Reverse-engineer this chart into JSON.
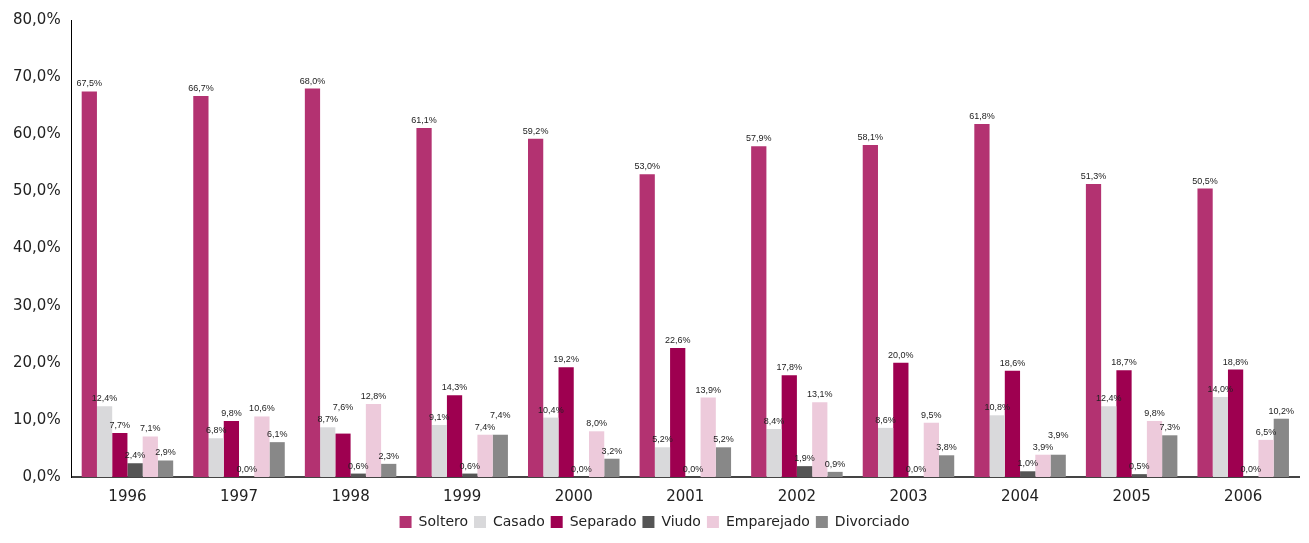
{
  "chart_data": {
    "type": "bar",
    "categories": [
      "1996",
      "1997",
      "1998",
      "1999",
      "2000",
      "2001",
      "2002",
      "2003",
      "2004",
      "2005",
      "2006"
    ],
    "series": [
      {
        "name": "Soltero",
        "color": "#b33271",
        "values": [
          67.5,
          66.7,
          68.0,
          61.1,
          59.2,
          53.0,
          57.9,
          58.1,
          61.8,
          51.3,
          50.5
        ],
        "value_labels": [
          "67,5%",
          "66,7%",
          "68,0%",
          "61,1%",
          "59,2%",
          "53,0%",
          "57,9%",
          "58,1%",
          "61,8%",
          "51,3%",
          "50,5%"
        ]
      },
      {
        "name": "Casado",
        "color": "#d9d9db",
        "values": [
          12.4,
          6.8,
          8.7,
          9.1,
          10.4,
          5.2,
          8.4,
          8.6,
          10.8,
          12.4,
          14.0
        ],
        "value_labels": [
          "12,4%",
          "6,8%",
          "8,7%",
          "9,1%",
          "10,4%",
          "5,2%",
          "8,4%",
          "8,6%",
          "10,8%",
          "12,4%",
          "14,0%"
        ]
      },
      {
        "name": "Separado",
        "color": "#9e0050",
        "values": [
          7.7,
          9.8,
          7.6,
          14.3,
          19.2,
          22.6,
          17.8,
          20.0,
          18.6,
          18.7,
          18.8
        ],
        "value_labels": [
          "7,7%",
          "9,8%",
          "7,6%",
          "14,3%",
          "19,2%",
          "22,6%",
          "17,8%",
          "20,0%",
          "18,6%",
          "18,7%",
          "18,8%"
        ]
      },
      {
        "name": "Viudo",
        "color": "#555555",
        "values": [
          2.4,
          0.0,
          0.6,
          0.6,
          0.0,
          0.0,
          1.9,
          0.0,
          1.0,
          0.5,
          0.0
        ],
        "value_labels": [
          "2,4%",
          "0,0%",
          "0,6%",
          "0,6%",
          "0,0%",
          "0,0%",
          "1,9%",
          "0,0%",
          "1,0%",
          "0,5%",
          "0,0%"
        ]
      },
      {
        "name": "Emparejado",
        "color": "#edcadb",
        "values": [
          7.1,
          10.6,
          12.8,
          7.4,
          8.0,
          13.9,
          13.1,
          9.5,
          3.9,
          9.8,
          6.5
        ],
        "value_labels": [
          "7,1%",
          "10,6%",
          "12,8%",
          "7,4%",
          "8,0%",
          "13,9%",
          "13,1%",
          "9,5%",
          "3,9%",
          "9,8%",
          "6,5%"
        ]
      },
      {
        "name": "Divorciado",
        "color": "#888888",
        "values": [
          2.9,
          6.1,
          2.3,
          7.4,
          3.2,
          5.2,
          0.9,
          3.8,
          3.9,
          7.3,
          10.2
        ],
        "value_labels": [
          "2,9%",
          "6,1%",
          "2,3%",
          "7,4%",
          "3,2%",
          "5,2%",
          "0,9%",
          "3,8%",
          "3,9%",
          "7,3%",
          "10,2%"
        ]
      }
    ],
    "ylim": [
      0,
      80
    ],
    "yticks": [
      {
        "value": 0,
        "label": "0,0%"
      },
      {
        "value": 10,
        "label": "10,0%"
      },
      {
        "value": 20,
        "label": "20,0%"
      },
      {
        "value": 30,
        "label": "30,0%"
      },
      {
        "value": 40,
        "label": "40,0%"
      },
      {
        "value": 50,
        "label": "50,0%"
      },
      {
        "value": 60,
        "label": "60,0%"
      },
      {
        "value": 70,
        "label": "70,0%"
      },
      {
        "value": 80,
        "label": "80,0%"
      }
    ],
    "grid": false,
    "legend": "bottom"
  }
}
